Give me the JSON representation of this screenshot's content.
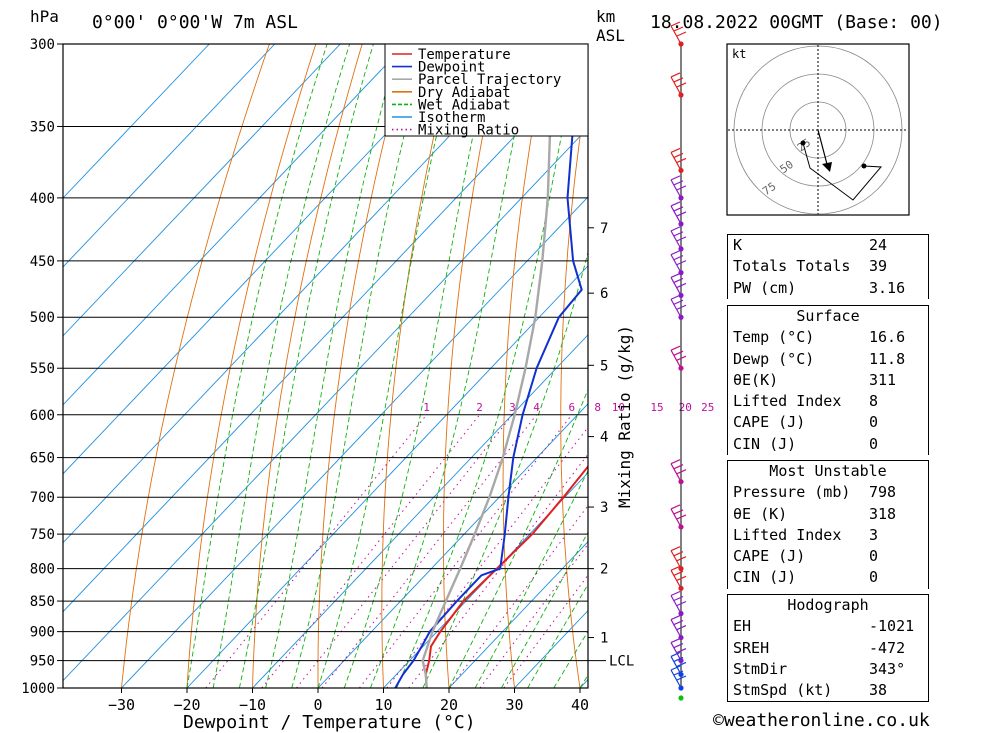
{
  "header": {
    "hpa_unit": "hPa",
    "location": "0°00' 0°00'W 7m ASL",
    "km_unit": "km",
    "asl_label": "ASL",
    "datetime": "18.08.2022 00GMT (Base: 00)"
  },
  "chart_data": {
    "type": "line",
    "subtype": "skew-T log-P",
    "xlabel": "Dewpoint / Temperature (°C)",
    "ylabel": "hPa",
    "mixing_ratio_label": "Mixing Ratio (g/kg)",
    "pressure_ticks": [
      300,
      350,
      400,
      450,
      500,
      550,
      600,
      650,
      700,
      750,
      800,
      850,
      900,
      950,
      1000
    ],
    "temp_ticks": [
      -30,
      -20,
      -10,
      0,
      10,
      20,
      30,
      40
    ],
    "km_ticks": [
      {
        "label": "7",
        "p": 423
      },
      {
        "label": "6",
        "p": 478
      },
      {
        "label": "5",
        "p": 547
      },
      {
        "label": "4",
        "p": 625
      },
      {
        "label": "3",
        "p": 713
      },
      {
        "label": "2",
        "p": 800
      },
      {
        "label": "1",
        "p": 910
      }
    ],
    "lcl": {
      "label": "LCL",
      "p": 950
    },
    "mixing_ratio_values": [
      "1",
      "2",
      "3",
      "4",
      "6",
      "8",
      "10",
      "15",
      "20",
      "25"
    ],
    "legend": {
      "position": "top-right",
      "entries": [
        {
          "name": "Temperature",
          "color": "#e02020",
          "style": "solid"
        },
        {
          "name": "Dewpoint",
          "color": "#1030d0",
          "style": "solid"
        },
        {
          "name": "Parcel Trajectory",
          "color": "#a8a8a8",
          "style": "solid"
        },
        {
          "name": "Dry Adiabat",
          "color": "#e07010",
          "style": "solid"
        },
        {
          "name": "Wet Adiabat",
          "color": "#10b010",
          "style": "dashed"
        },
        {
          "name": "Isotherm",
          "color": "#2090e0",
          "style": "solid"
        },
        {
          "name": "Mixing Ratio",
          "color": "#c010a0",
          "style": "dotted"
        }
      ]
    },
    "series": [
      {
        "name": "Temperature",
        "points": [
          [
            1000,
            16.6
          ],
          [
            975,
            14.5
          ],
          [
            950,
            13.0
          ],
          [
            925,
            11.2
          ],
          [
            900,
            10.5
          ],
          [
            850,
            9.6
          ],
          [
            800,
            10.0
          ],
          [
            750,
            10.4
          ],
          [
            700,
            9.8
          ],
          [
            650,
            8.9
          ],
          [
            600,
            7.7
          ],
          [
            550,
            2.5
          ],
          [
            500,
            -4.0
          ],
          [
            450,
            -10.5
          ],
          [
            400,
            -17.5
          ],
          [
            350,
            -27.0
          ],
          [
            300,
            -37.5
          ]
        ]
      },
      {
        "name": "Dewpoint",
        "points": [
          [
            1000,
            11.8
          ],
          [
            975,
            11.0
          ],
          [
            950,
            10.6
          ],
          [
            925,
            9.8
          ],
          [
            900,
            8.9
          ],
          [
            850,
            8.6
          ],
          [
            810,
            8.6
          ],
          [
            800,
            10.5
          ],
          [
            750,
            6.2
          ],
          [
            700,
            1.4
          ],
          [
            650,
            -3.6
          ],
          [
            600,
            -8.4
          ],
          [
            550,
            -13.0
          ],
          [
            500,
            -17.0
          ],
          [
            475,
            -17.5
          ],
          [
            450,
            -23.0
          ],
          [
            400,
            -33.0
          ],
          [
            350,
            -42.5
          ],
          [
            300,
            -52.0
          ]
        ]
      },
      {
        "name": "Parcel Trajectory",
        "points": [
          [
            1000,
            16.6
          ],
          [
            975,
            14.5
          ],
          [
            950,
            12.0
          ],
          [
            900,
            9.3
          ],
          [
            850,
            6.9
          ],
          [
            800,
            4.4
          ],
          [
            750,
            1.6
          ],
          [
            700,
            -1.5
          ],
          [
            650,
            -5.2
          ],
          [
            600,
            -9.6
          ],
          [
            550,
            -14.7
          ],
          [
            500,
            -20.6
          ],
          [
            450,
            -27.7
          ],
          [
            400,
            -36.0
          ],
          [
            350,
            -46.0
          ],
          [
            300,
            -58.0
          ]
        ]
      }
    ],
    "wind_barbs": {
      "colors_by_level": "red above 500 hPa, purple/blue mid-levels, green at surface",
      "levels": [
        300,
        330,
        380,
        400,
        420,
        440,
        460,
        480,
        500,
        550,
        680,
        740,
        800,
        830,
        870,
        910,
        950,
        975,
        1000
      ]
    }
  },
  "hodograph": {
    "unit_label": "kt",
    "ring_labels": [
      "25",
      "50",
      "75"
    ]
  },
  "tables": {
    "indices": {
      "rows": [
        {
          "label": "K",
          "value": "24"
        },
        {
          "label": "Totals Totals",
          "value": "39"
        },
        {
          "label": "PW (cm)",
          "value": "3.16"
        }
      ]
    },
    "surface": {
      "title": "Surface",
      "rows": [
        {
          "label": "Temp (°C)",
          "value": "16.6"
        },
        {
          "label": "Dewp (°C)",
          "value": "11.8"
        },
        {
          "label": "θE(K)",
          "value": "311"
        },
        {
          "label": "Lifted Index",
          "value": "8"
        },
        {
          "label": "CAPE (J)",
          "value": "0"
        },
        {
          "label": "CIN (J)",
          "value": "0"
        }
      ]
    },
    "most_unstable": {
      "title": "Most Unstable",
      "rows": [
        {
          "label": "Pressure (mb)",
          "value": "798"
        },
        {
          "label": "θE (K)",
          "value": "318"
        },
        {
          "label": "Lifted Index",
          "value": "3"
        },
        {
          "label": "CAPE (J)",
          "value": "0"
        },
        {
          "label": "CIN (J)",
          "value": "0"
        }
      ]
    },
    "hodograph": {
      "title": "Hodograph",
      "rows": [
        {
          "label": "EH",
          "value": "-1021"
        },
        {
          "label": "SREH",
          "value": "-472"
        },
        {
          "label": "StmDir",
          "value": "343°"
        },
        {
          "label": "StmSpd (kt)",
          "value": "38"
        }
      ]
    }
  },
  "credit": "©weatheronline.co.uk"
}
